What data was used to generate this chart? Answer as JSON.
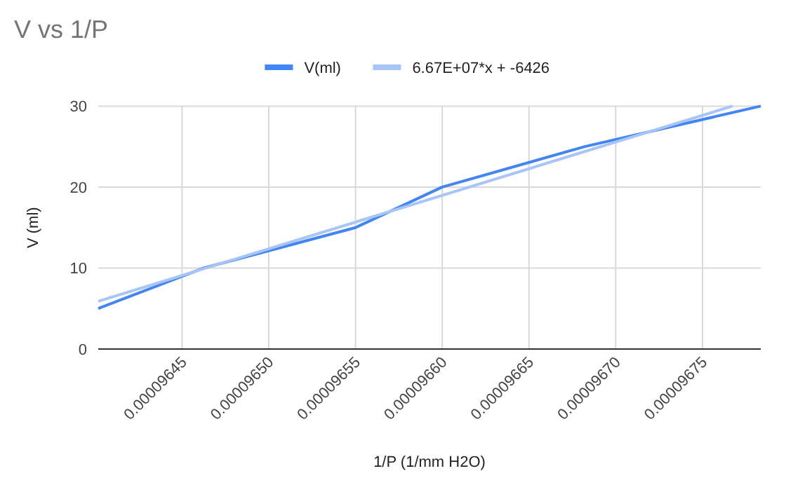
{
  "chart_data": {
    "type": "line",
    "title": "V vs 1/P",
    "xlabel": "1/P (1/mm H2O)",
    "ylabel": "V (ml)",
    "series": [
      {
        "name": "V(ml)",
        "color": "#4285f4",
        "x": [
          9.64017e-05,
          9.64625e-05,
          9.655e-05,
          9.66e-05,
          9.66822e-05,
          9.67836e-05
        ],
        "values": [
          5,
          10,
          15,
          20,
          25,
          30
        ]
      },
      {
        "name": "6.67E+07*x + -6426",
        "color": "#a8c5f8",
        "x": [
          9.64017e-05,
          9.67673e-05
        ],
        "values": [
          5.9,
          30
        ]
      }
    ],
    "xlim": [
      9.64017e-05,
      9.67836e-05
    ],
    "xticks": [
      {
        "value": 9.645e-05,
        "label": "0.00009645"
      },
      {
        "value": 9.65e-05,
        "label": "0.00009650"
      },
      {
        "value": 9.655e-05,
        "label": "0.00009655"
      },
      {
        "value": 9.66e-05,
        "label": "0.00009660"
      },
      {
        "value": 9.665e-05,
        "label": "0.00009665"
      },
      {
        "value": 9.67e-05,
        "label": "0.00009670"
      },
      {
        "value": 9.675e-05,
        "label": "0.00009675"
      }
    ],
    "ylim": [
      0,
      30
    ],
    "yticks": [
      0,
      10,
      20,
      30
    ],
    "grid": true,
    "legend": "top",
    "marker": "none",
    "line_style": "solid"
  }
}
